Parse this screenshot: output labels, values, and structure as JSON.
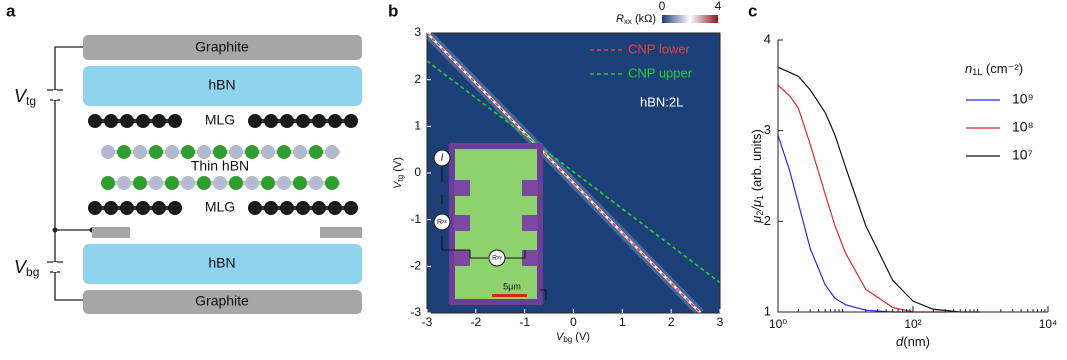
{
  "diagram": {
    "label": "a",
    "layers": [
      "Graphite",
      "hBN",
      "MLG",
      "Thin hBN",
      "MLG",
      "hBN",
      "Graphite"
    ],
    "voltages": [
      {
        "main": "V",
        "sub": "tg"
      },
      {
        "main": "V",
        "sub": "bg"
      }
    ]
  },
  "chart_data": [
    {
      "type": "heatmap",
      "panel_label": "b",
      "xlabel": {
        "main": "V",
        "sub": "bg",
        "unit": " (V)"
      },
      "ylabel": {
        "main": "V",
        "sub": "tg",
        "unit": " (V)"
      },
      "xlim": [
        -3,
        3
      ],
      "ylim": [
        -3,
        3
      ],
      "xticks": [
        -3,
        -2,
        -1,
        0,
        1,
        2,
        3
      ],
      "yticks": [
        -3,
        -2,
        -1,
        0,
        1,
        2,
        3
      ],
      "background": "#1d3f78",
      "colorbar": {
        "label": {
          "main": "R",
          "sub": "xx",
          "unit": " (kΩ)"
        },
        "ticks": [
          0,
          4
        ],
        "colors": [
          "#1d3f78",
          "#ffffff",
          "#8b1a24"
        ]
      },
      "series": [
        {
          "name": "CNP lower",
          "color": "#e8433e",
          "x": [
            -3,
            2.6
          ],
          "values": [
            3.0,
            -3.0
          ]
        },
        {
          "name": "CNP upper",
          "color": "#28d12e",
          "x": [
            -3,
            3
          ],
          "values": [
            2.4,
            -2.35
          ]
        }
      ],
      "annotation": "hBN:2L",
      "inset": {
        "current": "I",
        "rxx": {
          "main": "R",
          "sub": "xx"
        },
        "rxy": {
          "main": "R",
          "sub": "xy"
        },
        "scale": "5μm"
      }
    },
    {
      "type": "line",
      "panel_label": "c",
      "xscale": "log",
      "minor_ticks": true,
      "xlabel": {
        "main": "d",
        "unit": "(nm)"
      },
      "ylabel": {
        "main": "μ",
        "sub1": "2",
        "mid": "/μ",
        "sub2": "1",
        "unit": " (arb. units)"
      },
      "xlim": [
        1,
        10000
      ],
      "ylim": [
        1,
        4
      ],
      "xticks": [
        {
          "value": 1,
          "label": "10⁰"
        },
        {
          "value": 100,
          "label": "10²"
        },
        {
          "value": 10000,
          "label": "10⁴"
        }
      ],
      "yticks": [
        1,
        2,
        3,
        4
      ],
      "legend_title": {
        "main": "n",
        "sub": "1L",
        "unit": " (cm⁻²)"
      },
      "series": [
        {
          "name": "10⁹",
          "color": "#2b2bd6",
          "x": [
            1,
            1.5,
            2,
            3,
            5,
            7,
            10,
            20,
            50,
            100
          ],
          "values": [
            2.95,
            2.55,
            2.2,
            1.7,
            1.3,
            1.15,
            1.08,
            1.02,
            1.0,
            1.0
          ]
        },
        {
          "name": "10⁸",
          "color": "#d62b2b",
          "x": [
            1,
            1.5,
            2,
            3,
            5,
            7,
            10,
            20,
            50,
            100,
            300
          ],
          "values": [
            3.5,
            3.38,
            3.25,
            2.85,
            2.3,
            1.95,
            1.65,
            1.25,
            1.05,
            1.0,
            1.0
          ]
        },
        {
          "name": "10⁷",
          "color": "#111111",
          "x": [
            1,
            2,
            3,
            5,
            7,
            10,
            20,
            50,
            100,
            200,
            500,
            1000
          ],
          "values": [
            3.7,
            3.6,
            3.45,
            3.2,
            2.95,
            2.6,
            1.95,
            1.35,
            1.12,
            1.03,
            1.0,
            1.0
          ]
        }
      ]
    }
  ]
}
